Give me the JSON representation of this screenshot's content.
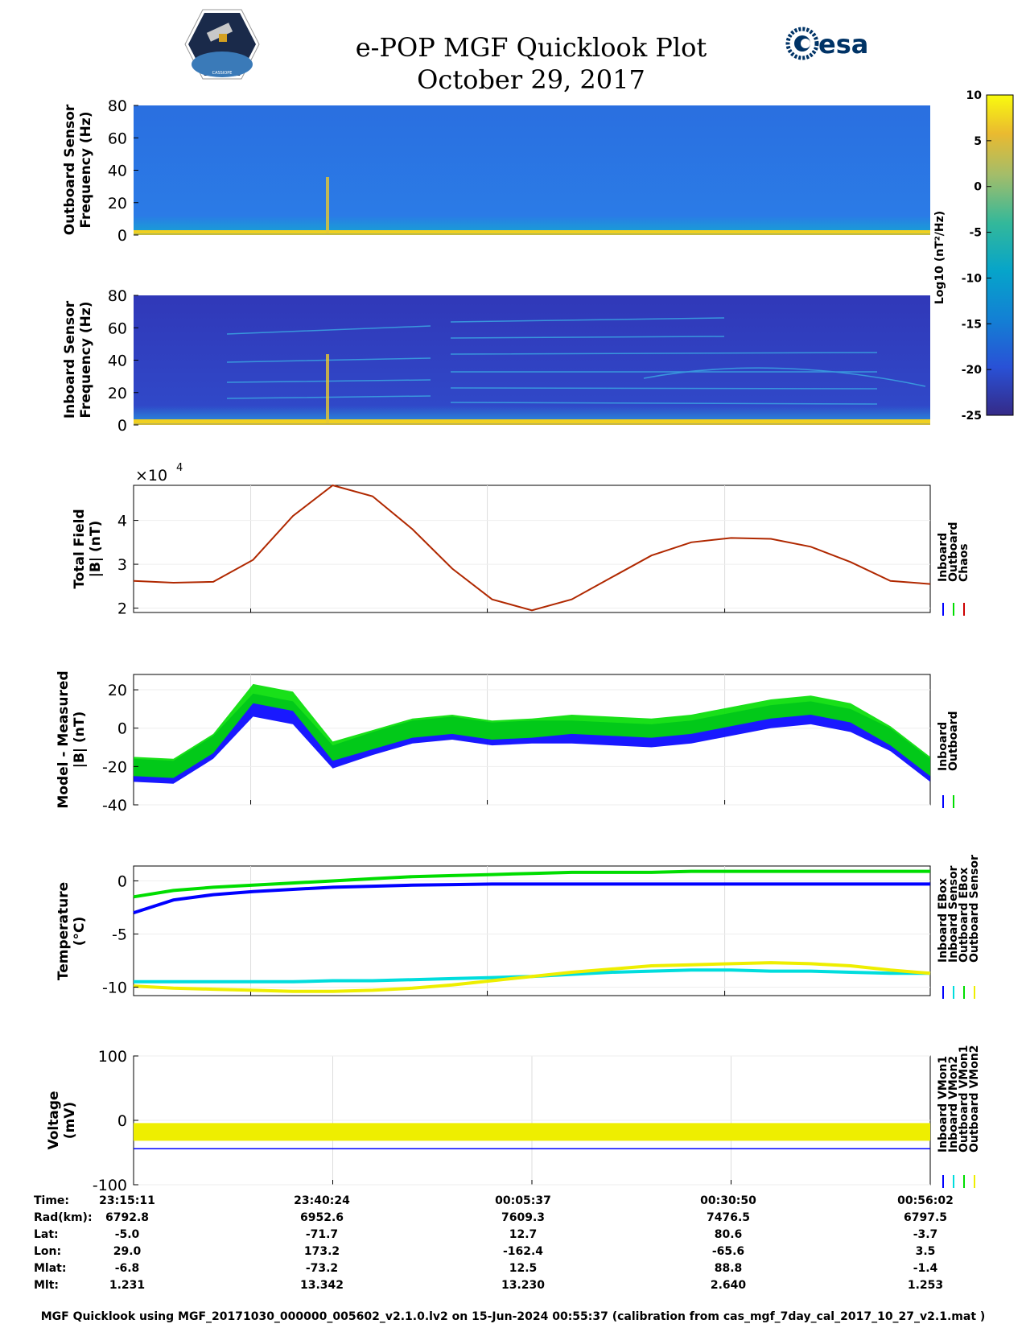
{
  "header": {
    "title": "e-POP MGF Quicklook Plot",
    "date": "October 29, 2017",
    "esa_logo_text": "esa",
    "epop_logo_text": "CASSIOPE"
  },
  "colorbar": {
    "label": "Log10 (nT²/Hz)",
    "ticks": [
      "10",
      "5",
      "0",
      "-5",
      "-10",
      "-15",
      "-20",
      "-25"
    ],
    "range": [
      -25,
      10
    ]
  },
  "chart_data": [
    {
      "type": "heatmap",
      "name": "outboard-spectrogram",
      "ylabel": [
        "Outboard Sensor",
        "Frequency (Hz)"
      ],
      "yticks": [
        0,
        20,
        40,
        60,
        80
      ],
      "ylim": [
        0,
        80
      ]
    },
    {
      "type": "heatmap",
      "name": "inboard-spectrogram",
      "ylabel": [
        "Inboard Sensor",
        "Frequency (Hz)"
      ],
      "yticks": [
        0,
        20,
        40,
        60,
        80
      ],
      "ylim": [
        0,
        80
      ]
    },
    {
      "type": "line",
      "name": "total-field",
      "ylabel": [
        "Total Field",
        "|B| (nT)"
      ],
      "multiplier": "×10",
      "multiplier_exp": "4",
      "yticks": [
        2,
        3,
        4
      ],
      "ylim": [
        1.9,
        4.8
      ],
      "legend": [
        "Inboard",
        "Outboard",
        "Chaos"
      ],
      "legend_colors": [
        "#0000ff",
        "#00dd00",
        "#cc0000"
      ],
      "x": [
        0,
        0.05,
        0.1,
        0.15,
        0.2,
        0.25,
        0.3,
        0.35,
        0.4,
        0.45,
        0.5,
        0.55,
        0.6,
        0.65,
        0.7,
        0.75,
        0.8,
        0.85,
        0.9,
        0.95,
        1.0
      ],
      "series": [
        {
          "name": "Chaos",
          "values": [
            2.62,
            2.58,
            2.6,
            3.1,
            4.1,
            4.8,
            4.55,
            3.8,
            2.9,
            2.2,
            1.95,
            2.2,
            2.7,
            3.2,
            3.5,
            3.6,
            3.58,
            3.4,
            3.05,
            2.62,
            2.55
          ]
        }
      ]
    },
    {
      "type": "line",
      "name": "model-minus-measured",
      "ylabel": [
        "Model - Measured",
        "|B| (nT)"
      ],
      "yticks": [
        -40,
        -20,
        0,
        20
      ],
      "ylim": [
        -40,
        28
      ],
      "legend": [
        "Inboard",
        "Outboard"
      ],
      "legend_colors": [
        "#0000ff",
        "#00dd00"
      ],
      "x": [
        0,
        0.05,
        0.1,
        0.15,
        0.2,
        0.25,
        0.3,
        0.35,
        0.4,
        0.45,
        0.5,
        0.55,
        0.6,
        0.65,
        0.7,
        0.75,
        0.8,
        0.85,
        0.9,
        0.95,
        1.0
      ],
      "series": [
        {
          "name": "Inboard",
          "values": [
            -22,
            -23,
            -10,
            12,
            8,
            -15,
            -8,
            -2,
            0,
            -3,
            -2,
            -2,
            -3,
            -4,
            -2,
            2,
            6,
            8,
            4,
            -6,
            -22
          ]
        },
        {
          "name": "Outboard",
          "values": [
            -20,
            -21,
            -8,
            18,
            14,
            -12,
            -6,
            0,
            2,
            -1,
            0,
            2,
            1,
            0,
            2,
            6,
            10,
            12,
            8,
            -4,
            -20
          ]
        }
      ]
    },
    {
      "type": "line",
      "name": "temperature",
      "ylabel": [
        "Temperature",
        "(°C)"
      ],
      "yticks": [
        -10,
        -5,
        0
      ],
      "ylim": [
        -10.8,
        1.4
      ],
      "legend": [
        "Inboard EBox",
        "Inboard Sensor",
        "Outboard EBox",
        "Outboard Sensor"
      ],
      "legend_colors": [
        "#0000ff",
        "#00dddd",
        "#00dd00",
        "#eeee00"
      ],
      "x": [
        0,
        0.05,
        0.1,
        0.15,
        0.2,
        0.25,
        0.3,
        0.35,
        0.4,
        0.45,
        0.5,
        0.55,
        0.6,
        0.65,
        0.7,
        0.75,
        0.8,
        0.85,
        0.9,
        0.95,
        1.0
      ],
      "series": [
        {
          "name": "Inboard EBox",
          "values": [
            -3,
            -1.8,
            -1.3,
            -1.0,
            -0.8,
            -0.6,
            -0.5,
            -0.4,
            -0.35,
            -0.3,
            -0.3,
            -0.3,
            -0.3,
            -0.3,
            -0.3,
            -0.3,
            -0.3,
            -0.3,
            -0.3,
            -0.3,
            -0.3
          ]
        },
        {
          "name": "Inboard Sensor",
          "values": [
            -9.5,
            -9.5,
            -9.5,
            -9.5,
            -9.5,
            -9.4,
            -9.4,
            -9.3,
            -9.2,
            -9.1,
            -9.0,
            -8.8,
            -8.6,
            -8.5,
            -8.4,
            -8.4,
            -8.5,
            -8.5,
            -8.6,
            -8.7,
            -8.7
          ]
        },
        {
          "name": "Outboard EBox",
          "values": [
            -1.5,
            -0.9,
            -0.6,
            -0.4,
            -0.2,
            0,
            0.2,
            0.4,
            0.5,
            0.6,
            0.7,
            0.8,
            0.8,
            0.8,
            0.9,
            0.9,
            0.9,
            0.9,
            0.9,
            0.9,
            0.9
          ]
        },
        {
          "name": "Outboard Sensor",
          "values": [
            -9.9,
            -10.1,
            -10.2,
            -10.3,
            -10.4,
            -10.4,
            -10.3,
            -10.1,
            -9.8,
            -9.4,
            -9.0,
            -8.6,
            -8.3,
            -8.0,
            -7.9,
            -7.8,
            -7.7,
            -7.8,
            -8.0,
            -8.4,
            -8.7
          ]
        }
      ]
    },
    {
      "type": "line",
      "name": "voltage",
      "ylabel": [
        "Voltage",
        "(mV)"
      ],
      "yticks": [
        -100,
        0,
        100
      ],
      "ylim": [
        -100,
        100
      ],
      "legend": [
        "Inboard VMon1",
        "Inboard VMon2",
        "Outboard VMon1",
        "Outboard VMon2"
      ],
      "legend_colors": [
        "#0000ff",
        "#00dddd",
        "#00dd00",
        "#eeee00"
      ],
      "x": [
        0,
        1.0
      ],
      "series": [
        {
          "name": "Inboard VMon1",
          "values": [
            -44,
            -44
          ]
        },
        {
          "name": "Outboard VMon2",
          "values": [
            -18,
            -18
          ]
        }
      ]
    }
  ],
  "table": {
    "row_labels": [
      "Time:",
      "Rad(km):",
      "Lat:",
      "Lon:",
      "Mlat:",
      "Mlt:"
    ],
    "columns": [
      [
        "23:15:11",
        "6792.8",
        "-5.0",
        "29.0",
        "-6.8",
        "1.231"
      ],
      [
        "23:40:24",
        "6952.6",
        "-71.7",
        "173.2",
        "-73.2",
        "13.342"
      ],
      [
        "00:05:37",
        "7609.3",
        "12.7",
        "-162.4",
        "12.5",
        "13.230"
      ],
      [
        "00:30:50",
        "7476.5",
        "80.6",
        "-65.6",
        "88.8",
        "2.640"
      ],
      [
        "00:56:02",
        "6797.5",
        "-3.7",
        "3.5",
        "-1.4",
        "1.253"
      ]
    ]
  },
  "footer": "MGF Quicklook using MGF_20171030_000000_005602_v2.1.0.lv2 on 15-Jun-2024 00:55:37 (calibration from cas_mgf_7day_cal_2017_10_27_v2.1.mat )"
}
